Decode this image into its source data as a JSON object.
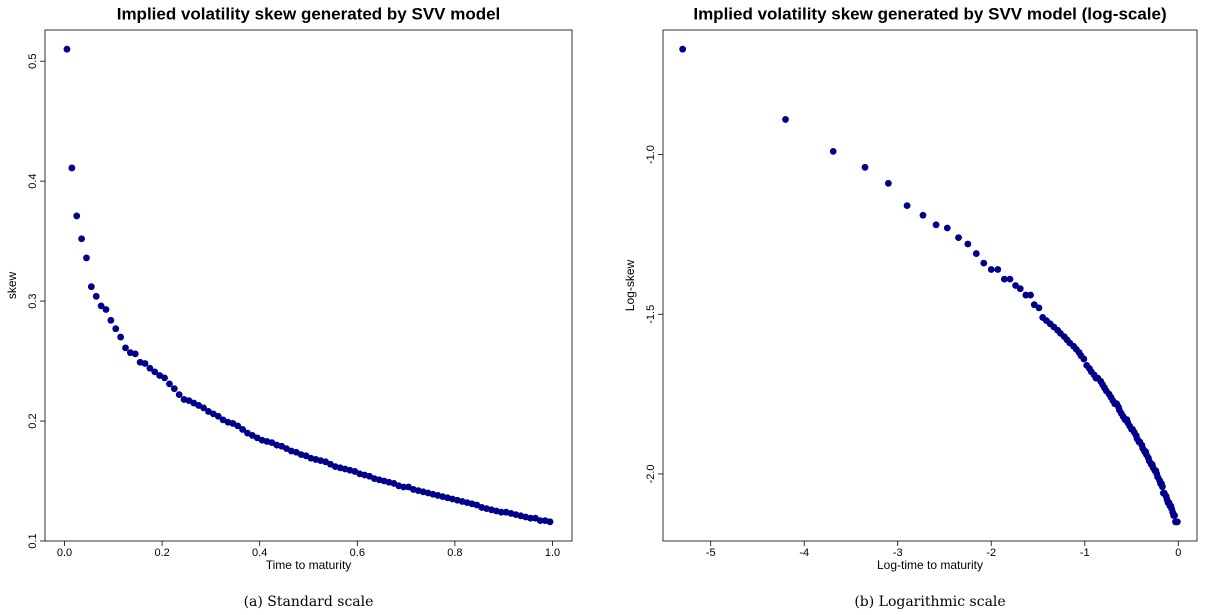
{
  "chart_data": [
    {
      "type": "scatter",
      "title": "Implied volatility skew generated by SVV model",
      "xlabel": "Time to maturity",
      "ylabel": "skew",
      "caption": "(a) Standard scale",
      "color": "#00008b",
      "x": [
        0.005,
        0.015,
        0.025,
        0.035,
        0.045,
        0.055,
        0.065,
        0.075,
        0.085,
        0.095,
        0.105,
        0.115,
        0.125,
        0.135,
        0.145,
        0.155,
        0.165,
        0.175,
        0.185,
        0.195,
        0.205,
        0.215,
        0.225,
        0.235,
        0.245,
        0.255,
        0.265,
        0.275,
        0.285,
        0.295,
        0.305,
        0.315,
        0.325,
        0.335,
        0.345,
        0.355,
        0.365,
        0.375,
        0.385,
        0.395,
        0.405,
        0.415,
        0.425,
        0.435,
        0.445,
        0.455,
        0.465,
        0.475,
        0.485,
        0.495,
        0.505,
        0.515,
        0.525,
        0.535,
        0.545,
        0.555,
        0.565,
        0.575,
        0.585,
        0.595,
        0.605,
        0.615,
        0.625,
        0.635,
        0.645,
        0.655,
        0.665,
        0.675,
        0.685,
        0.695,
        0.705,
        0.715,
        0.725,
        0.735,
        0.745,
        0.755,
        0.765,
        0.775,
        0.785,
        0.795,
        0.805,
        0.815,
        0.825,
        0.835,
        0.845,
        0.855,
        0.865,
        0.875,
        0.885,
        0.895,
        0.905,
        0.915,
        0.925,
        0.935,
        0.945,
        0.955,
        0.965,
        0.975,
        0.985,
        0.995
      ],
      "values": [
        0.51,
        0.411,
        0.371,
        0.352,
        0.336,
        0.312,
        0.304,
        0.296,
        0.293,
        0.284,
        0.277,
        0.27,
        0.261,
        0.257,
        0.256,
        0.249,
        0.248,
        0.244,
        0.241,
        0.238,
        0.236,
        0.231,
        0.227,
        0.222,
        0.218,
        0.217,
        0.215,
        0.213,
        0.211,
        0.208,
        0.206,
        0.204,
        0.201,
        0.199,
        0.198,
        0.196,
        0.193,
        0.19,
        0.188,
        0.186,
        0.184,
        0.183,
        0.182,
        0.18,
        0.179,
        0.177,
        0.175,
        0.174,
        0.172,
        0.171,
        0.169,
        0.168,
        0.167,
        0.166,
        0.164,
        0.162,
        0.161,
        0.16,
        0.159,
        0.158,
        0.156,
        0.155,
        0.154,
        0.152,
        0.151,
        0.15,
        0.149,
        0.148,
        0.146,
        0.145,
        0.145,
        0.143,
        0.142,
        0.141,
        0.14,
        0.139,
        0.138,
        0.137,
        0.136,
        0.135,
        0.134,
        0.133,
        0.132,
        0.131,
        0.13,
        0.128,
        0.127,
        0.126,
        0.125,
        0.124,
        0.124,
        0.123,
        0.122,
        0.121,
        0.12,
        0.119,
        0.119,
        0.117,
        0.117,
        0.116
      ],
      "xlim": [
        -0.04,
        1.04
      ],
      "ylim": [
        0.1,
        0.526
      ],
      "xticks": [
        {
          "value": 0,
          "label": "0.0"
        },
        0.2,
        0.4,
        0.6,
        0.8,
        {
          "value": 1,
          "label": "1.0"
        }
      ],
      "yticks": [
        0.1,
        0.2,
        0.3,
        0.4,
        0.5
      ]
    },
    {
      "type": "scatter",
      "title": "Implied volatility skew generated by SVV model (log-scale)",
      "xlabel": "Log-time to maturity",
      "ylabel": "Log-skew",
      "caption": "(b) Logarithmic scale",
      "color": "#00008b",
      "x": [
        -5.3,
        -4.2,
        -3.69,
        -3.35,
        -3.1,
        -2.9,
        -2.73,
        -2.59,
        -2.47,
        -2.35,
        -2.25,
        -2.16,
        -2.08,
        -2,
        -1.93,
        -1.86,
        -1.8,
        -1.74,
        -1.69,
        -1.63,
        -1.58,
        -1.54,
        -1.49,
        -1.45,
        -1.41,
        -1.37,
        -1.33,
        -1.29,
        -1.26,
        -1.22,
        -1.19,
        -1.16,
        -1.12,
        -1.09,
        -1.06,
        -1.04,
        -1.01,
        -0.98,
        -0.95,
        -0.93,
        -0.9,
        -0.88,
        -0.86,
        -0.83,
        -0.81,
        -0.79,
        -0.77,
        -0.74,
        -0.72,
        -0.7,
        -0.68,
        -0.66,
        -0.64,
        -0.63,
        -0.61,
        -0.59,
        -0.57,
        -0.55,
        -0.54,
        -0.52,
        -0.5,
        -0.49,
        -0.47,
        -0.45,
        -0.44,
        -0.42,
        -0.41,
        -0.39,
        -0.38,
        -0.36,
        -0.35,
        -0.34,
        -0.32,
        -0.31,
        -0.29,
        -0.28,
        -0.27,
        -0.25,
        -0.24,
        -0.23,
        -0.22,
        -0.2,
        -0.19,
        -0.18,
        -0.17,
        -0.16,
        -0.15,
        -0.13,
        -0.12,
        -0.11,
        -0.1,
        -0.09,
        -0.08,
        -0.07,
        -0.06,
        -0.05,
        -0.04,
        -0.03,
        -0.02,
        -0.01
      ],
      "values": [
        -0.67,
        -0.89,
        -0.99,
        -1.04,
        -1.09,
        -1.16,
        -1.19,
        -1.22,
        -1.23,
        -1.26,
        -1.28,
        -1.31,
        -1.34,
        -1.36,
        -1.36,
        -1.39,
        -1.39,
        -1.41,
        -1.42,
        -1.44,
        -1.44,
        -1.47,
        -1.48,
        -1.51,
        -1.52,
        -1.53,
        -1.54,
        -1.55,
        -1.56,
        -1.57,
        -1.58,
        -1.59,
        -1.6,
        -1.61,
        -1.62,
        -1.63,
        -1.64,
        -1.66,
        -1.67,
        -1.68,
        -1.69,
        -1.7,
        -1.7,
        -1.71,
        -1.72,
        -1.73,
        -1.74,
        -1.75,
        -1.76,
        -1.77,
        -1.78,
        -1.78,
        -1.79,
        -1.8,
        -1.81,
        -1.82,
        -1.83,
        -1.83,
        -1.84,
        -1.85,
        -1.86,
        -1.86,
        -1.87,
        -1.88,
        -1.89,
        -1.9,
        -1.9,
        -1.91,
        -1.92,
        -1.93,
        -1.93,
        -1.94,
        -1.95,
        -1.96,
        -1.97,
        -1.97,
        -1.98,
        -1.99,
        -1.99,
        -2,
        -2.01,
        -2.02,
        -2.03,
        -2.03,
        -2.04,
        -2.06,
        -2.06,
        -2.07,
        -2.08,
        -2.09,
        -2.09,
        -2.1,
        -2.1,
        -2.11,
        -2.12,
        -2.13,
        -2.13,
        -2.15,
        -2.15,
        -2.15
      ],
      "xlim": [
        -5.51,
        0.2
      ],
      "ylim": [
        -2.21,
        -0.61
      ],
      "xticks": [
        -5,
        -4,
        -3,
        -2,
        -1,
        0
      ],
      "yticks": [
        {
          "value": -2,
          "label": "-2.0"
        },
        -1.5,
        {
          "value": -1,
          "label": "-1.0"
        }
      ]
    }
  ]
}
